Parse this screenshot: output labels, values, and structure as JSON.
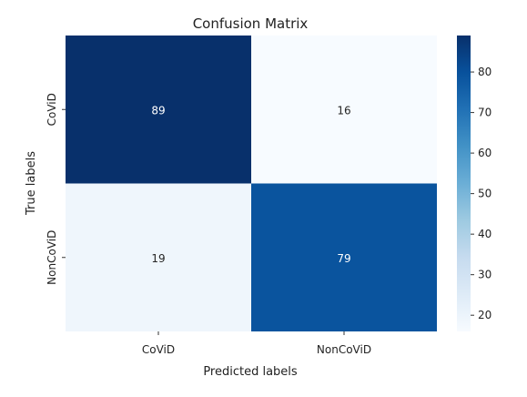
{
  "chart_data": {
    "type": "heatmap",
    "title": "Confusion Matrix",
    "xlabel": "Predicted labels",
    "ylabel": "True labels",
    "x_categories": [
      "CoViD",
      "NonCoViD"
    ],
    "y_categories": [
      "CoViD",
      "NonCoViD"
    ],
    "values": [
      [
        89,
        16
      ],
      [
        19,
        79
      ]
    ],
    "colormap": "Blues",
    "colorbar": {
      "range": [
        16,
        89
      ],
      "ticks": [
        20,
        30,
        40,
        50,
        60,
        70,
        80
      ],
      "tick_labels": [
        "20",
        "30",
        "40",
        "50",
        "60",
        "70",
        "80"
      ]
    },
    "annotations": true,
    "grid": false,
    "legend": "colorbar-right"
  }
}
